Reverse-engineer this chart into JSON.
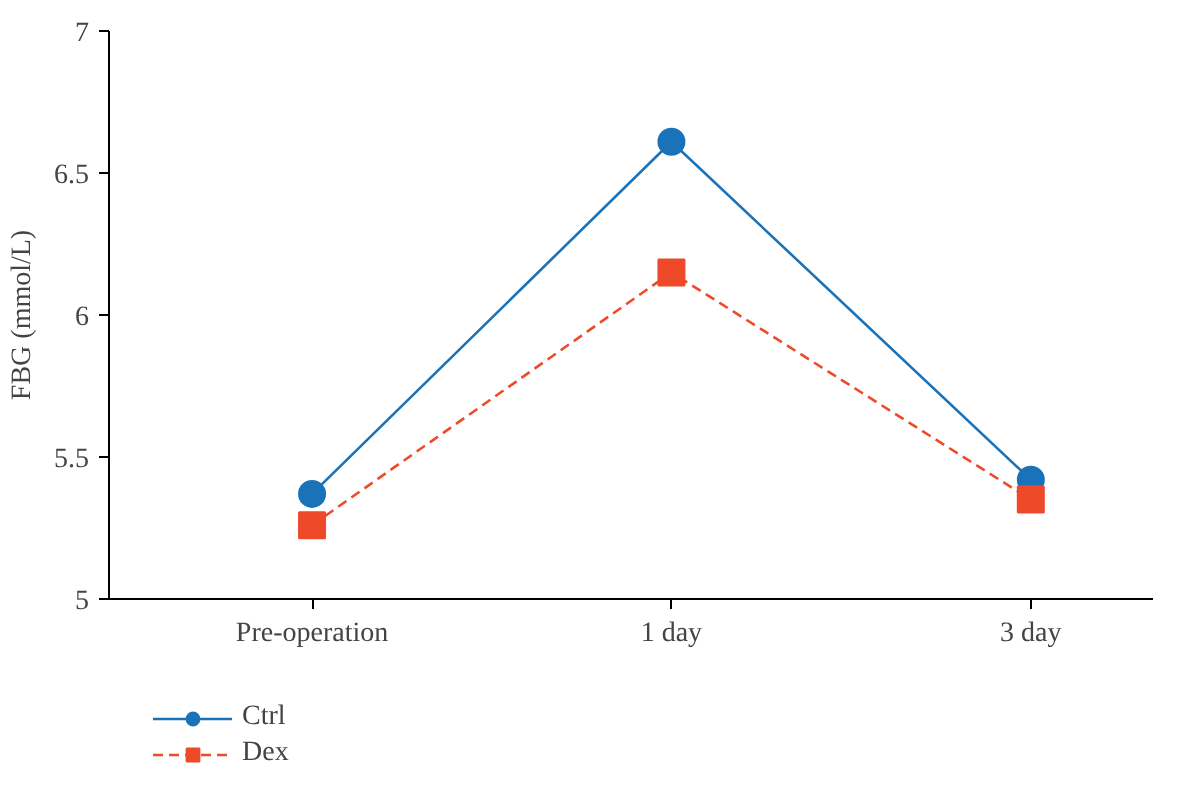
{
  "chart_data": {
    "type": "line",
    "ylabel": "FBG (mmol/L)",
    "categories": [
      "Pre-operation",
      "1 day",
      "3 day"
    ],
    "series": [
      {
        "name": "Ctrl",
        "color": "#1a72b8",
        "values": [
          5.37,
          6.61,
          5.42
        ],
        "marker": "circle",
        "line_style": "solid"
      },
      {
        "name": "Dex",
        "color": "#ee4a2a",
        "values": [
          5.26,
          6.15,
          5.35
        ],
        "marker": "square",
        "line_style": "dashed"
      }
    ],
    "ylim": [
      5,
      7
    ],
    "yticks": [
      5,
      5.5,
      6,
      6.5,
      7
    ],
    "grid": false,
    "legend": "bottom left"
  }
}
